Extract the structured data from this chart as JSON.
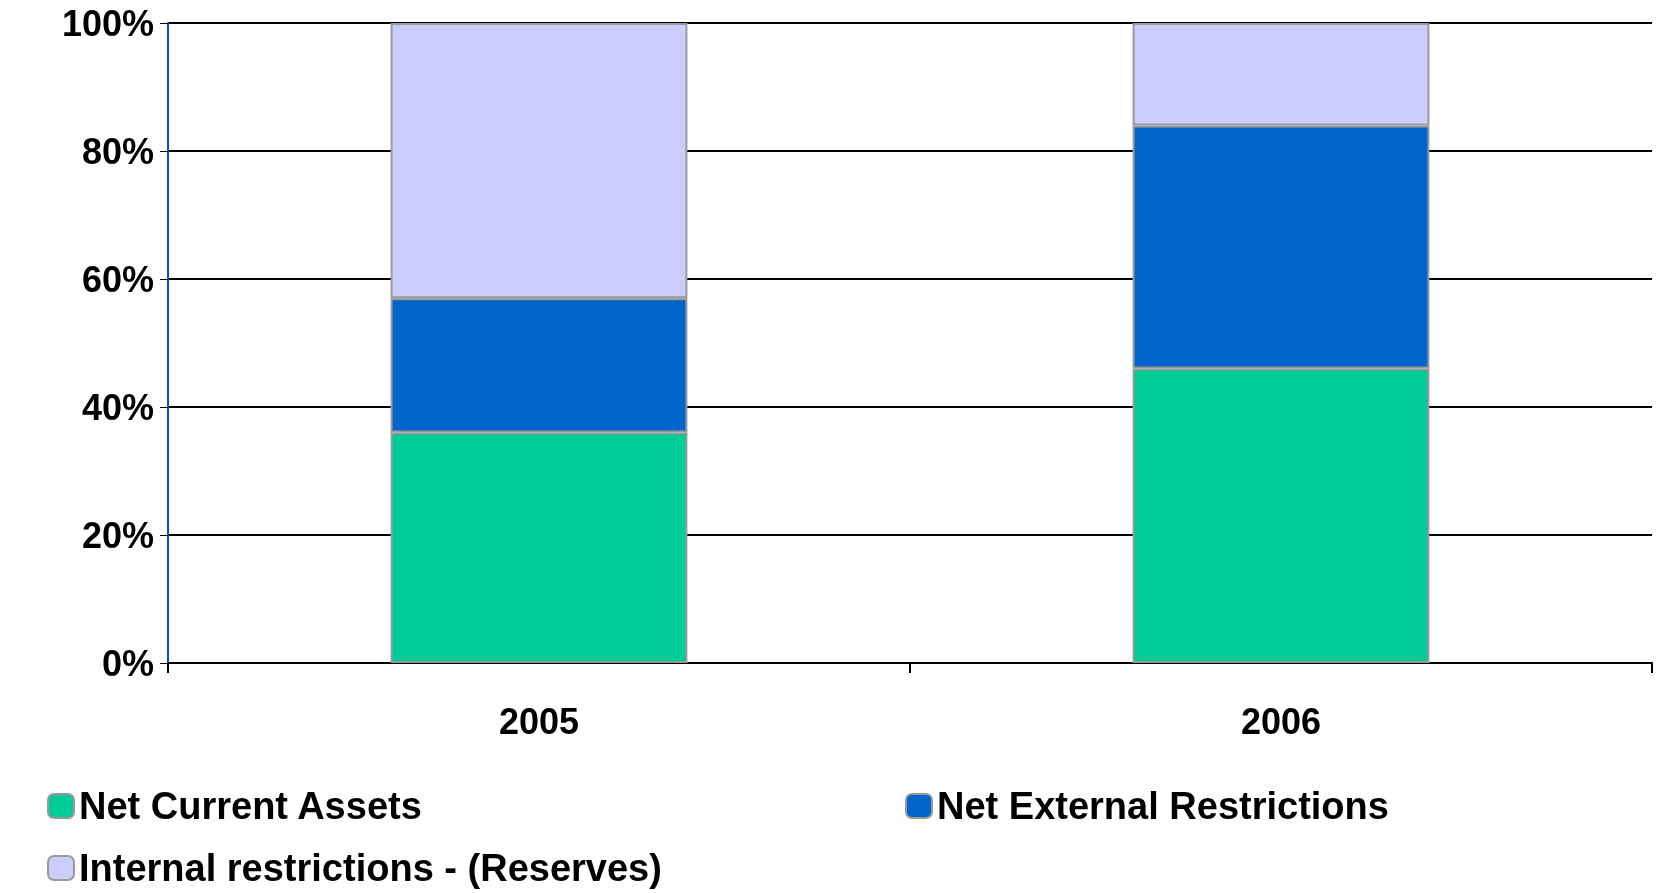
{
  "chart_data": {
    "type": "bar",
    "stacked": true,
    "categories": [
      "2005",
      "2006"
    ],
    "series": [
      {
        "name": "Net Current Assets",
        "color": "#00cc99",
        "values": [
          36,
          46
        ]
      },
      {
        "name": "Net External Restrictions",
        "color": "#0066cc",
        "values": [
          21,
          38
        ]
      },
      {
        "name": "Internal restrictions - (Reserves)",
        "color": "#ccccff",
        "values": [
          43,
          16
        ]
      }
    ],
    "ylim": [
      0,
      100
    ],
    "yticks": [
      {
        "value": 0,
        "label": "0%"
      },
      {
        "value": 20,
        "label": "20%"
      },
      {
        "value": 40,
        "label": "40%"
      },
      {
        "value": 60,
        "label": "60%"
      },
      {
        "value": 80,
        "label": "80%"
      },
      {
        "value": 100,
        "label": "100%"
      }
    ],
    "grid": "y",
    "legend": "bottom"
  }
}
